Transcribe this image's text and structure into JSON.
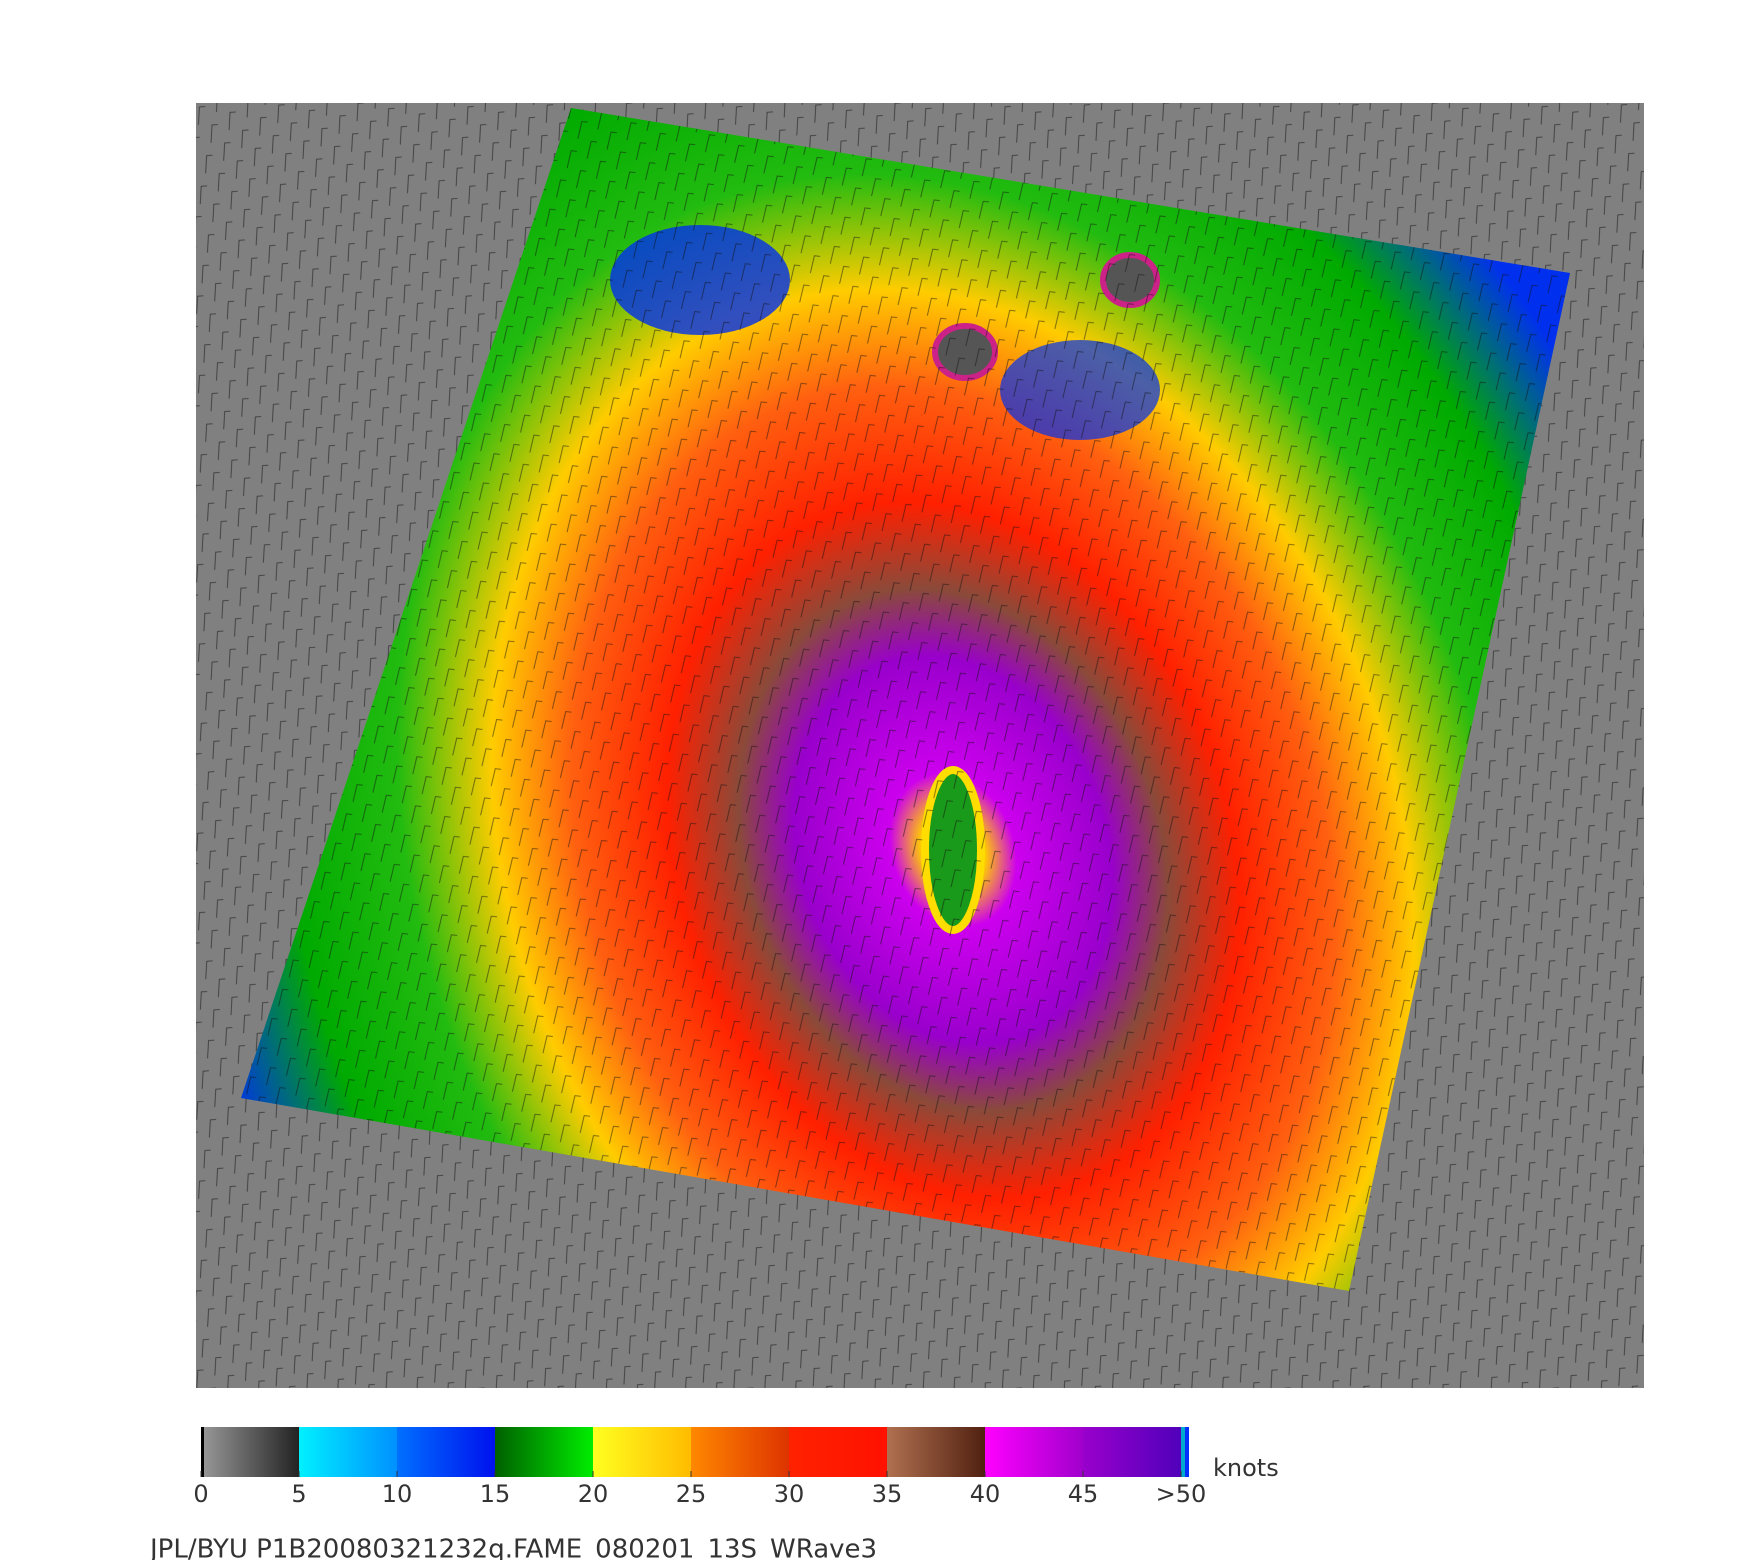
{
  "colorbar": {
    "unit": "knots",
    "range": [
      0,
      50
    ],
    "ticks": [
      0,
      5,
      10,
      15,
      20,
      25,
      30,
      35,
      40,
      45,
      {
        "value": 50,
        "label": ">50"
      }
    ]
  },
  "footer": "JPL/BYU  P1B20080321232q.FAME_080201_13S_WRave3"
}
